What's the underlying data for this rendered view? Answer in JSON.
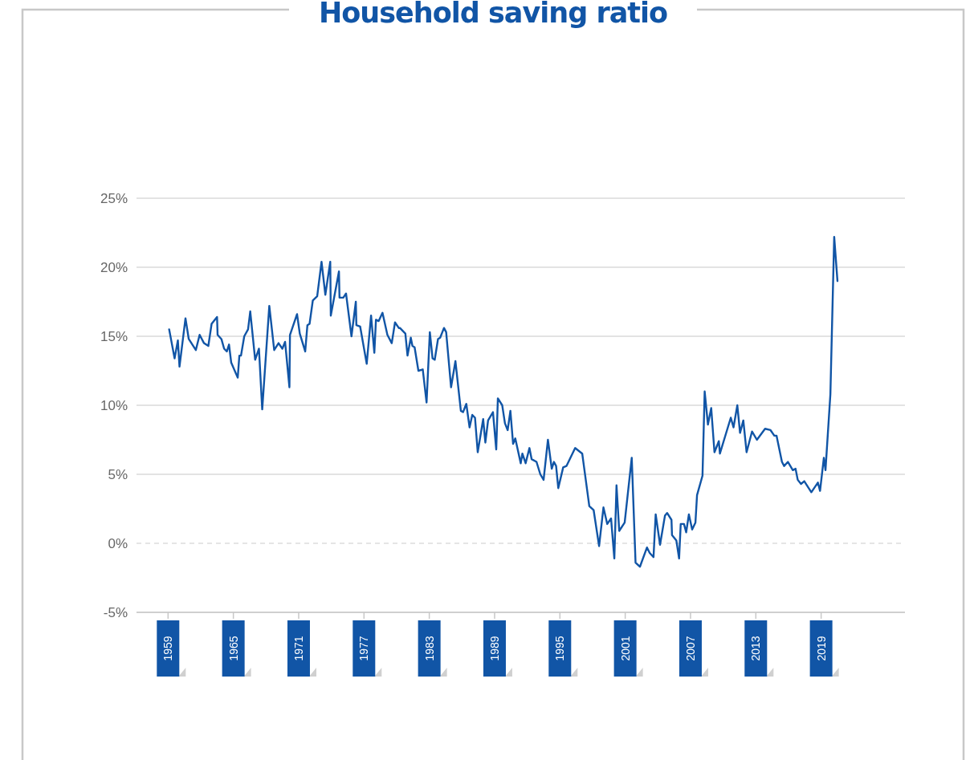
{
  "chart_data": {
    "type": "line",
    "title": "Household saving ratio",
    "x": [
      1959.1,
      1959.6,
      1959.9,
      1960.05,
      1960.6,
      1960.9,
      1961.55,
      1961.9,
      1962.3,
      1962.7,
      1963.0,
      1963.5,
      1963.55,
      1963.9,
      1964.15,
      1964.4,
      1964.6,
      1964.8,
      1965.4,
      1965.55,
      1965.7,
      1966.0,
      1966.35,
      1966.55,
      1967.0,
      1967.35,
      1967.65,
      1968.3,
      1968.75,
      1969.15,
      1969.5,
      1969.75,
      1970.15,
      1970.2,
      1970.85,
      1971.1,
      1971.6,
      1971.8,
      1972.0,
      1972.3,
      1972.7,
      1973.1,
      1973.45,
      1973.9,
      1973.95,
      1974.7,
      1974.75,
      1975.1,
      1975.35,
      1975.85,
      1976.25,
      1976.3,
      1976.65,
      1977.25,
      1977.65,
      1977.95,
      1978.1,
      1978.35,
      1978.7,
      1979.15,
      1979.55,
      1979.85,
      1980.2,
      1980.3,
      1980.8,
      1981.0,
      1981.3,
      1981.45,
      1981.65,
      1982.0,
      1982.4,
      1982.75,
      1983.05,
      1983.3,
      1983.5,
      1983.8,
      1984.0,
      1984.35,
      1984.55,
      1985.0,
      1985.4,
      1985.9,
      1986.1,
      1986.4,
      1986.7,
      1986.95,
      1987.2,
      1987.45,
      1987.95,
      1988.15,
      1988.4,
      1988.85,
      1989.15,
      1989.3,
      1989.7,
      1989.95,
      1990.2,
      1990.45,
      1990.7,
      1990.9,
      1991.4,
      1991.55,
      1991.85,
      1992.2,
      1992.4,
      1992.85,
      1993.2,
      1993.5,
      1993.9,
      1994.25,
      1994.45,
      1994.65,
      1994.85,
      1995.3,
      1995.6,
      1996.4,
      1997.05,
      1997.7,
      1998.1,
      1998.6,
      1999.0,
      1999.35,
      1999.7,
      2000.0,
      2000.2,
      2000.45,
      2000.95,
      2001.6,
      2001.95,
      2002.35,
      2003.0,
      2003.25,
      2003.6,
      2003.8,
      2004.2,
      2004.65,
      2004.85,
      2005.25,
      2005.3,
      2005.7,
      2005.95,
      2006.1,
      2006.4,
      2006.6,
      2006.85,
      2007.15,
      2007.45,
      2007.6,
      2008.1,
      2008.3,
      2008.6,
      2008.9,
      2009.2,
      2009.6,
      2009.7,
      2010.7,
      2010.95,
      2011.3,
      2011.55,
      2011.85,
      2012.15,
      2012.65,
      2013.1,
      2013.85,
      2014.35,
      2014.7,
      2014.9,
      2015.4,
      2015.6,
      2015.95,
      2016.4,
      2016.65,
      2016.85,
      2017.15,
      2017.45,
      2018.1,
      2018.7,
      2018.9,
      2019.25,
      2019.4,
      2019.85,
      2020.2,
      2020.5
    ],
    "series": [
      {
        "color": "#1155a6",
        "values": [
          15.5,
          13.4,
          14.7,
          12.8,
          16.3,
          14.8,
          14.0,
          15.1,
          14.5,
          14.3,
          15.9,
          16.4,
          15.1,
          14.8,
          14.1,
          13.9,
          14.4,
          13.1,
          12.0,
          13.6,
          13.6,
          15.0,
          15.5,
          16.8,
          13.3,
          14.1,
          9.7,
          17.2,
          14.0,
          14.5,
          14.1,
          14.6,
          11.3,
          15.1,
          16.6,
          15.2,
          13.9,
          15.8,
          15.9,
          17.6,
          17.9,
          20.4,
          18.0,
          20.4,
          16.5,
          19.7,
          17.8,
          17.8,
          18.1,
          15.0,
          17.5,
          15.8,
          15.7,
          13.0,
          16.5,
          13.8,
          16.2,
          16.1,
          16.7,
          15.1,
          14.5,
          16.0,
          15.6,
          15.6,
          15.2,
          13.6,
          14.9,
          14.3,
          14.2,
          12.5,
          12.6,
          10.2,
          15.3,
          13.4,
          13.3,
          14.8,
          14.9,
          15.6,
          15.3,
          11.3,
          13.2,
          9.6,
          9.5,
          10.1,
          8.4,
          9.3,
          9.1,
          6.6,
          9.0,
          7.3,
          8.9,
          9.5,
          6.8,
          10.5,
          10.0,
          8.7,
          8.2,
          9.6,
          7.2,
          7.6,
          5.8,
          6.5,
          5.8,
          6.9,
          6.1,
          5.9,
          5.0,
          4.6,
          7.5,
          5.4,
          5.9,
          5.6,
          4.0,
          5.5,
          5.6,
          6.9,
          6.5,
          2.7,
          2.4,
          -0.2,
          2.6,
          1.4,
          1.8,
          -1.1,
          4.2,
          0.9,
          1.5,
          6.2,
          -1.4,
          -1.7,
          -0.3,
          -0.7,
          -1.0,
          2.1,
          -0.1,
          2.0,
          2.2,
          1.7,
          0.6,
          0.2,
          -1.1,
          1.4,
          1.4,
          0.8,
          2.1,
          1.0,
          1.5,
          3.5,
          4.9,
          11.0,
          8.6,
          9.8,
          6.6,
          7.4,
          6.5,
          9.1,
          8.4,
          10.0,
          8.0,
          8.9,
          6.6,
          8.1,
          7.5,
          8.3,
          8.2,
          7.8,
          7.8,
          5.9,
          5.6,
          5.9,
          5.3,
          5.4,
          4.6,
          4.3,
          4.5,
          3.7,
          4.4,
          3.8,
          6.2,
          5.3,
          10.8,
          22.2,
          19.0
        ]
      }
    ],
    "xlim": [
      1956.1,
      2026.7
    ],
    "xticks": [
      1959,
      1965,
      1971,
      1977,
      1983,
      1989,
      1995,
      2001,
      2007,
      2013,
      2019
    ],
    "ylim": [
      -5,
      25
    ],
    "yticks": [
      {
        "value": -5,
        "label": "-5%"
      },
      {
        "value": 0,
        "label": "0%"
      },
      {
        "value": 5,
        "label": "5%"
      },
      {
        "value": 10,
        "label": "10%"
      },
      {
        "value": 15,
        "label": "15%"
      },
      {
        "value": 20,
        "label": "20%"
      },
      {
        "value": 25,
        "label": "25%"
      }
    ],
    "grid": "y",
    "marker": "none",
    "line_style": "solid",
    "ref_lines": [
      {
        "axis": "y",
        "value": 0,
        "color": "#cccccc",
        "line_style": "dashed"
      }
    ]
  }
}
